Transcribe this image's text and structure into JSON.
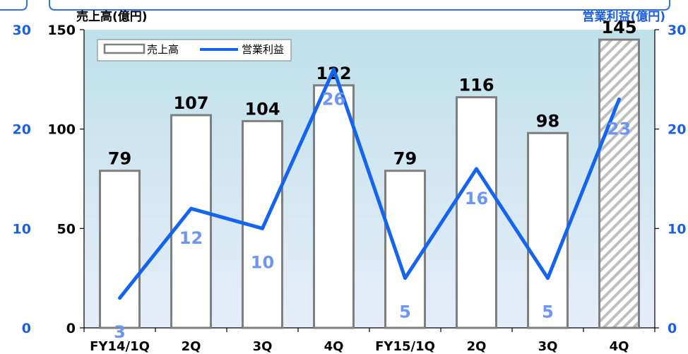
{
  "chart_data": {
    "type": "bar",
    "title_left": "売上高(億円)",
    "title_right": "営業利益(億円)",
    "categories": [
      "FY14/1Q",
      "2Q",
      "3Q",
      "4Q",
      "FY15/1Q",
      "2Q",
      "3Q",
      "4Q"
    ],
    "series": [
      {
        "name": "売上高",
        "kind": "bar",
        "axis": "left",
        "values": [
          79,
          107,
          104,
          122,
          79,
          116,
          98,
          145
        ],
        "forecast_index": 7
      },
      {
        "name": "営業利益",
        "kind": "line",
        "axis": "right",
        "values": [
          3,
          12,
          10,
          26,
          5,
          16,
          5,
          23
        ]
      }
    ],
    "left_axis": {
      "min": 0,
      "max": 150,
      "ticks": [
        0,
        50,
        100,
        150
      ]
    },
    "right_axis": {
      "min": 0,
      "max": 30,
      "ticks": [
        0,
        10,
        20,
        30
      ]
    },
    "outer_axis": {
      "ticks": [
        0,
        10,
        20,
        30
      ]
    },
    "legend_position": "top-left",
    "colors": {
      "bar_fill": "#ffffff",
      "bar_stroke": "#7f7f7f",
      "forecast_hatch": "#bfbfbf",
      "line": "#1464f0",
      "line_label": "#6e96f0",
      "blue_text": "#1a5fe0",
      "plot_bg_top": "#bfe1ea",
      "plot_bg_bottom": "#e6edf8",
      "frame": "#2f6ff0"
    }
  }
}
